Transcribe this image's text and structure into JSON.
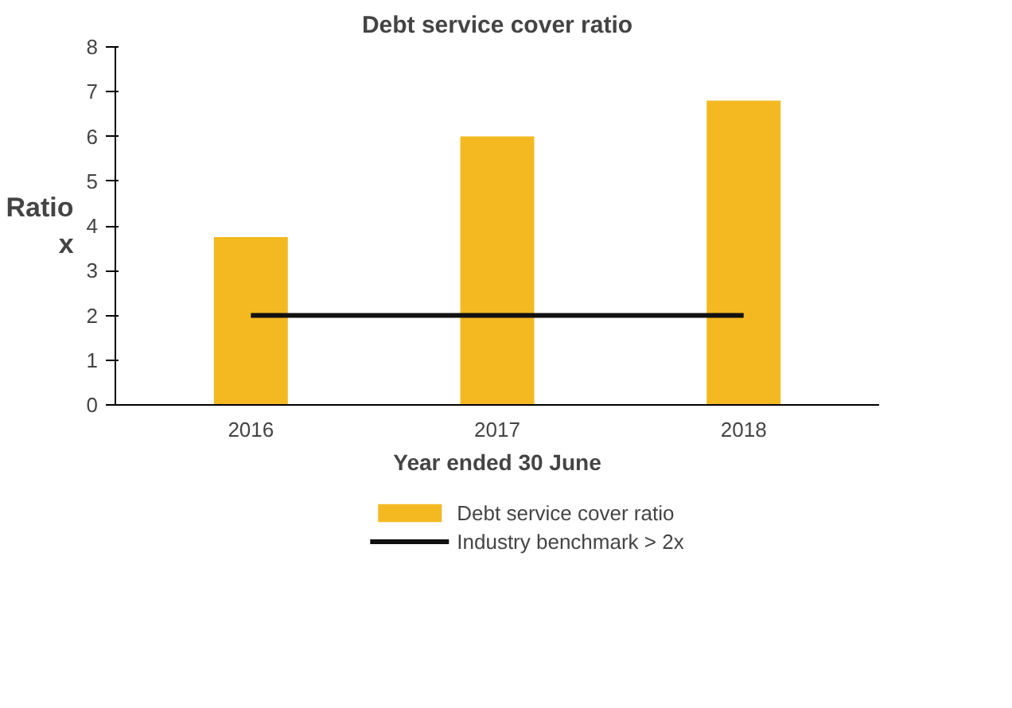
{
  "chart_data": {
    "type": "bar",
    "title": "Debt service cover ratio",
    "xlabel": "Year ended 30 June",
    "ylabel": "Ratio\nx",
    "categories": [
      "2016",
      "2017",
      "2018"
    ],
    "series": [
      {
        "name": "Debt service cover ratio",
        "color": "#f4b921",
        "values": [
          3.75,
          6.0,
          6.8
        ]
      },
      {
        "name": "Industry benchmark > 2x",
        "type": "line",
        "color": "#111111",
        "values": [
          2,
          2,
          2
        ]
      }
    ],
    "ylim": [
      0,
      8
    ],
    "yticks": [
      0,
      1,
      2,
      3,
      4,
      5,
      6,
      7,
      8
    ],
    "grid": false,
    "legend": "bottom"
  }
}
